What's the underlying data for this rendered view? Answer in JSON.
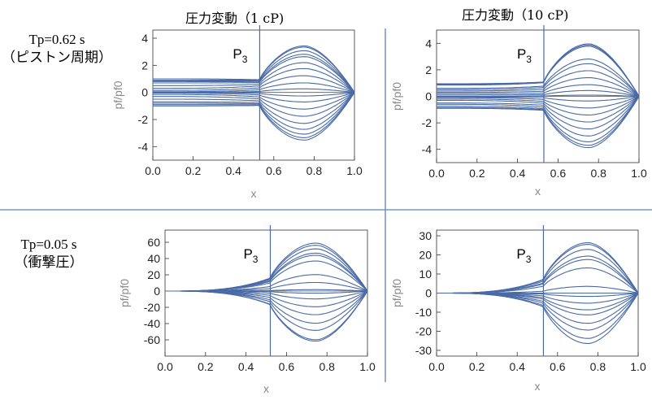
{
  "row_labels": [
    {
      "line1": "Tp=0.62 s",
      "line2": "（ピストン周期）"
    },
    {
      "line1": "Tp=0.05 s",
      "line2": "（衝撃圧）"
    }
  ],
  "column_titles": [
    "圧力変動（1 cP)",
    "圧力変動（10 cP)"
  ],
  "colors": {
    "curve": "#4a6aa6",
    "divider": "#5b84c4",
    "axis": "#333333",
    "label": "#888888"
  },
  "chart_data": [
    {
      "type": "line",
      "title": "圧力変動（1 cP)",
      "xlabel": "x",
      "ylabel": "pf/pf0",
      "xlim": [
        0,
        1
      ],
      "ylim": [
        -5,
        4.6
      ],
      "xticks": [
        "0.0",
        "0.2",
        "0.4",
        "0.6",
        "0.8",
        "1.0"
      ],
      "yticks": [
        -4,
        -2,
        0,
        2,
        4
      ],
      "marker": {
        "label": "P",
        "subscript": "3",
        "x": 0.53
      },
      "series_peaks": [
        3.9,
        3.8,
        3.5,
        3.2,
        3.0,
        2.5,
        2.0,
        1.4,
        0.8,
        0.3,
        -0.3,
        -0.8,
        -1.4,
        -2.0,
        -2.6,
        -3.1,
        -3.5,
        -3.8,
        -4.0
      ],
      "series_left": [
        1.0,
        0.9,
        0.85,
        0.8,
        0.7,
        0.5,
        0.3,
        0.15,
        0.05,
        0.0,
        0.0,
        -0.05,
        -0.15,
        -0.3,
        -0.5,
        -0.7,
        -0.8,
        -0.9,
        -1.0
      ]
    },
    {
      "type": "line",
      "title": "圧力変動（10 cP)",
      "xlabel": "x",
      "ylabel": "pf/pf0",
      "xlim": [
        0,
        1
      ],
      "ylim": [
        -5,
        5
      ],
      "xticks": [
        "0.0",
        "0.2",
        "0.4",
        "0.6",
        "0.8",
        "1.0"
      ],
      "yticks": [
        -4,
        -2,
        0,
        2,
        4
      ],
      "marker": {
        "label": "P",
        "subscript": "3",
        "x": 0.53
      },
      "series_peaks": [
        4.5,
        4.4,
        4.3,
        3.2,
        2.8,
        2.2,
        1.6,
        1.0,
        0.5,
        0.1,
        -0.4,
        -1.0,
        -1.6,
        -2.2,
        -2.8,
        -3.4,
        -3.9,
        -4.2,
        -4.4
      ],
      "series_left": [
        0.95,
        0.9,
        0.85,
        0.6,
        0.5,
        0.4,
        0.3,
        0.2,
        0.1,
        0.0,
        -0.05,
        -0.1,
        -0.2,
        -0.3,
        -0.5,
        -0.6,
        -0.75,
        -0.85,
        -0.9
      ]
    },
    {
      "type": "line",
      "title": "",
      "xlabel": "x",
      "ylabel": "pf/pf0",
      "xlim": [
        0,
        1
      ],
      "ylim": [
        -80,
        75
      ],
      "xticks": [
        "0.0",
        "0.2",
        "0.4",
        "0.6",
        "0.8",
        "1.0"
      ],
      "yticks": [
        -60,
        -40,
        -20,
        0,
        20,
        40,
        60
      ],
      "marker": {
        "label": "P",
        "subscript": "3",
        "x": 0.52
      },
      "series_peaks": [
        67,
        64,
        59,
        53,
        50,
        42,
        23,
        12,
        2,
        -3,
        -11,
        -22,
        -33,
        -45,
        -55,
        -68,
        -70
      ],
      "series_left": [
        0,
        0,
        0,
        0,
        0,
        0,
        0,
        0,
        0,
        0,
        0,
        0,
        0,
        0,
        0,
        0,
        0
      ]
    },
    {
      "type": "line",
      "title": "",
      "xlabel": "x",
      "ylabel": "pf/pf0",
      "xlim": [
        0,
        1
      ],
      "ylim": [
        -33,
        33
      ],
      "xticks": [
        "0.0",
        "0.2",
        "0.4",
        "0.6",
        "0.8",
        "1.0"
      ],
      "yticks": [
        -30,
        -20,
        -10,
        0,
        10,
        20,
        30
      ],
      "marker": {
        "label": "P",
        "subscript": "3",
        "x": 0.53
      },
      "series_peaks": [
        30,
        29,
        26,
        22,
        20,
        15,
        4,
        0,
        -2,
        -6,
        -10,
        -13,
        -18,
        -22,
        -27,
        -30
      ],
      "series_left": [
        0,
        0,
        0,
        0,
        0,
        0,
        0,
        0,
        0,
        0,
        0,
        0,
        0,
        0,
        0,
        0
      ]
    }
  ]
}
